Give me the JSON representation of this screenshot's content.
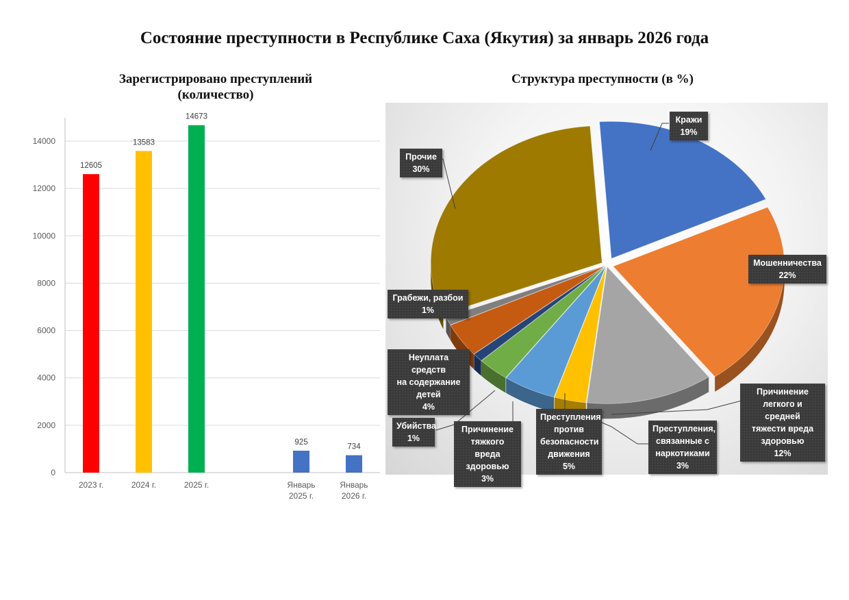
{
  "title": "Состояние преступности в Республике Саха (Якутия) за январь 2026 года",
  "chart_data": [
    {
      "type": "bar",
      "title": "Зарегистрировано преступлений (количество)",
      "title_lines": [
        "Зарегистрировано преступлений",
        "(количество)"
      ],
      "categories": [
        "2023 г.",
        "2024 г.",
        "2025 г.",
        "",
        "Январь 2025 г.",
        "Январь 2026 г."
      ],
      "category_lines": [
        [
          "2023 г."
        ],
        [
          "2024 г."
        ],
        [
          "2025 г."
        ],
        [],
        [
          "Январь",
          "2025 г."
        ],
        [
          "Январь",
          "2026 г."
        ]
      ],
      "values": [
        12605,
        13583,
        14673,
        null,
        925,
        734
      ],
      "colors": [
        "#ff0000",
        "#ffc000",
        "#00b050",
        null,
        "#4472c4",
        "#4472c4"
      ],
      "xlabel": "",
      "ylabel": "",
      "ylim": [
        0,
        15000
      ],
      "yticks": [
        0,
        2000,
        4000,
        6000,
        8000,
        10000,
        12000,
        14000
      ],
      "grid": true,
      "data_labels": true
    },
    {
      "type": "pie",
      "title": "Структура преступности (в %)",
      "style": "3d-exploded",
      "slices": [
        {
          "label": "Кражи",
          "value": 19,
          "color": "#4472c4"
        },
        {
          "label": "Мошенничества",
          "value": 22,
          "color": "#ed7d31"
        },
        {
          "label": "Причинение легкого и средней тяжести вреда здоровью",
          "value": 12,
          "color": "#a5a5a5"
        },
        {
          "label": "Преступления, связанные с наркотиками",
          "value": 3,
          "color": "#ffc000"
        },
        {
          "label": "Преступления против безопасности движения",
          "value": 5,
          "color": "#5b9bd5"
        },
        {
          "label": "Причинение тяжкого вреда здоровью",
          "value": 3,
          "color": "#70ad47"
        },
        {
          "label": "Убийства",
          "value": 1,
          "color": "#264478"
        },
        {
          "label": "Неуплата средств на содержание детей",
          "value": 4,
          "color": "#c55a11"
        },
        {
          "label": "Грабежи, разбои",
          "value": 1,
          "color": "#7f7f7f"
        },
        {
          "label": "Прочие",
          "value": 30,
          "color": "#9e7a00"
        }
      ]
    }
  ],
  "pie_labels": {
    "krazhi": {
      "lines": [
        "Кражи",
        "19%"
      ]
    },
    "moshen": {
      "lines": [
        "Мошенничества",
        "22%"
      ]
    },
    "legk": {
      "lines": [
        "Причинение",
        "легкого и средней",
        "тяжести вреда",
        "здоровью",
        "12%"
      ]
    },
    "nark": {
      "lines": [
        "Преступления,",
        "связанные с",
        "наркотиками",
        "3%"
      ]
    },
    "bezop": {
      "lines": [
        "Преступления",
        "против",
        "безопасности",
        "движения",
        "5%"
      ]
    },
    "tyazh": {
      "lines": [
        "Причинение",
        "тяжкого вреда",
        "здоровью",
        "3%"
      ]
    },
    "ubiy": {
      "lines": [
        "Убийства",
        "1%"
      ]
    },
    "neupl": {
      "lines": [
        "Неуплата средств",
        "на содержание",
        "детей",
        "4%"
      ]
    },
    "grab": {
      "lines": [
        "Грабежи, разбои",
        "1%"
      ]
    },
    "proch": {
      "lines": [
        "Прочие",
        "30%"
      ]
    }
  }
}
